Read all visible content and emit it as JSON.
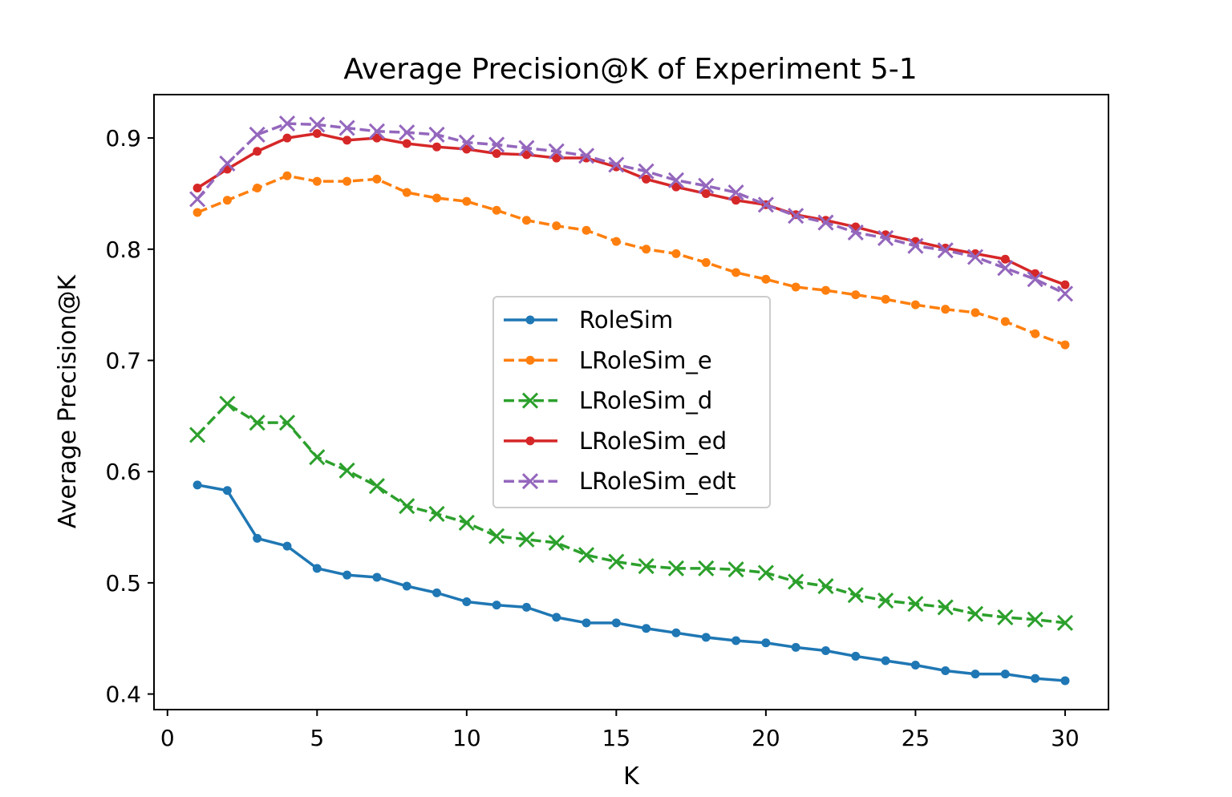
{
  "chart_data": {
    "type": "line",
    "title": "Average Precision@K of Experiment 5-1",
    "xlabel": "K",
    "ylabel": "Average Precision@K",
    "xlim": [
      -0.45,
      31.45
    ],
    "ylim": [
      0.386,
      0.939
    ],
    "xticks": [
      0,
      5,
      10,
      15,
      20,
      25,
      30
    ],
    "yticks": [
      0.4,
      0.5,
      0.6,
      0.7,
      0.8,
      0.9
    ],
    "grid": false,
    "legend_position": "center",
    "x": [
      1,
      2,
      3,
      4,
      5,
      6,
      7,
      8,
      9,
      10,
      11,
      12,
      13,
      14,
      15,
      16,
      17,
      18,
      19,
      20,
      21,
      22,
      23,
      24,
      25,
      26,
      27,
      28,
      29,
      30
    ],
    "series": [
      {
        "name": "RoleSim",
        "color": "#1f77b4",
        "linestyle": "solid",
        "marker": "dot",
        "values": [
          0.588,
          0.583,
          0.54,
          0.533,
          0.513,
          0.507,
          0.505,
          0.497,
          0.491,
          0.483,
          0.48,
          0.478,
          0.469,
          0.464,
          0.464,
          0.459,
          0.455,
          0.451,
          0.448,
          0.446,
          0.442,
          0.439,
          0.434,
          0.43,
          0.426,
          0.421,
          0.418,
          0.418,
          0.414,
          0.412
        ]
      },
      {
        "name": "LRoleSim_e",
        "color": "#ff7f0e",
        "linestyle": "dashed",
        "marker": "dot",
        "values": [
          0.833,
          0.844,
          0.855,
          0.866,
          0.861,
          0.861,
          0.863,
          0.851,
          0.846,
          0.843,
          0.835,
          0.826,
          0.821,
          0.817,
          0.807,
          0.8,
          0.796,
          0.788,
          0.779,
          0.773,
          0.766,
          0.763,
          0.759,
          0.755,
          0.75,
          0.746,
          0.743,
          0.735,
          0.724,
          0.714
        ]
      },
      {
        "name": "LRoleSim_d",
        "color": "#2ca02c",
        "linestyle": "dashed",
        "marker": "x",
        "values": [
          0.633,
          0.661,
          0.644,
          0.644,
          0.613,
          0.601,
          0.587,
          0.569,
          0.562,
          0.554,
          0.542,
          0.539,
          0.536,
          0.525,
          0.519,
          0.515,
          0.513,
          0.513,
          0.512,
          0.509,
          0.501,
          0.497,
          0.489,
          0.484,
          0.481,
          0.478,
          0.472,
          0.469,
          0.467,
          0.464
        ]
      },
      {
        "name": "LRoleSim_ed",
        "color": "#d62728",
        "linestyle": "solid",
        "marker": "dot",
        "values": [
          0.855,
          0.872,
          0.888,
          0.9,
          0.904,
          0.898,
          0.9,
          0.895,
          0.892,
          0.89,
          0.886,
          0.885,
          0.882,
          0.882,
          0.874,
          0.863,
          0.856,
          0.85,
          0.844,
          0.84,
          0.831,
          0.826,
          0.82,
          0.813,
          0.807,
          0.801,
          0.796,
          0.791,
          0.778,
          0.768
        ]
      },
      {
        "name": "LRoleSim_edt",
        "color": "#9467bd",
        "linestyle": "dashed",
        "marker": "x",
        "values": [
          0.845,
          0.877,
          0.903,
          0.913,
          0.912,
          0.909,
          0.906,
          0.905,
          0.903,
          0.896,
          0.894,
          0.891,
          0.888,
          0.884,
          0.876,
          0.87,
          0.862,
          0.857,
          0.851,
          0.84,
          0.83,
          0.824,
          0.815,
          0.81,
          0.803,
          0.799,
          0.793,
          0.783,
          0.773,
          0.76
        ]
      }
    ]
  }
}
